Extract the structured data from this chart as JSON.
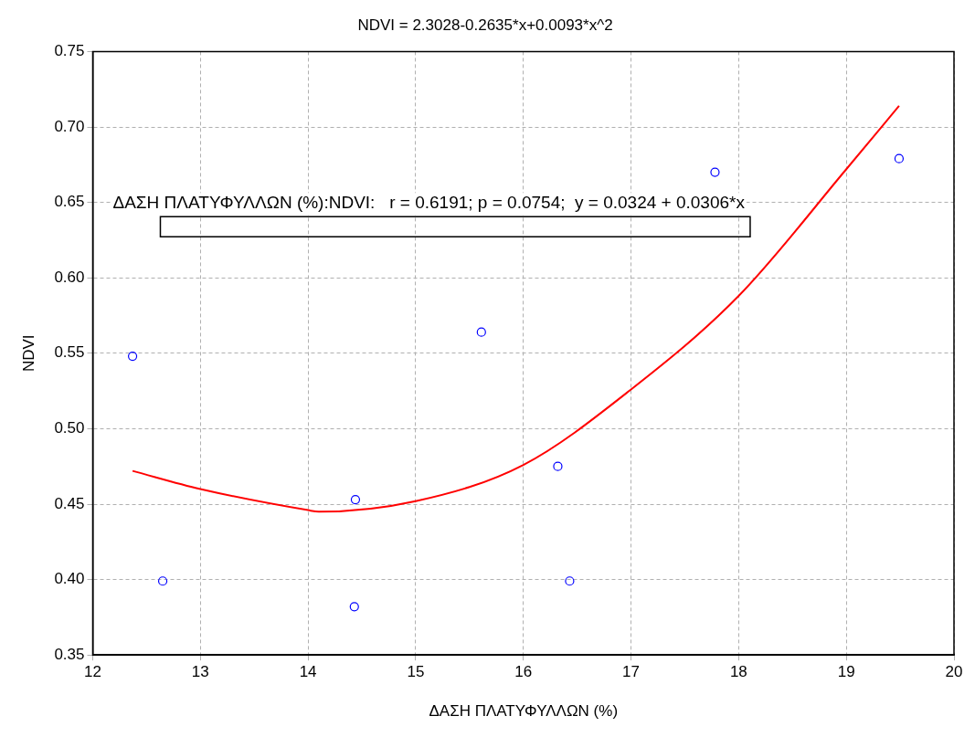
{
  "chart_data": {
    "type": "scatter",
    "title": "NDVI = 2.3028-0.2635*x+0.0093*x^2",
    "xlabel": "ΔΑΣΗ ΠΛΑΤΥΦΥΛΛΩΝ (%)",
    "ylabel": "NDVI",
    "annotations": [
      "ΔΑΣΗ ΠΛΑΤΥΦΥΛΛΩΝ (%):NDVI:   r = 0.6191; p = 0.0754;  y = 0.0324 + 0.0306*x"
    ],
    "xlim": [
      12,
      20
    ],
    "xticks": [
      12,
      13,
      14,
      15,
      16,
      17,
      18,
      19,
      20
    ],
    "ylim": [
      0.35,
      0.75
    ],
    "yticks": [
      0.35,
      {
        "value": 0.4,
        "label": "0.40"
      },
      0.45,
      {
        "value": 0.5,
        "label": "0.50"
      },
      0.55,
      {
        "value": 0.6,
        "label": "0.60"
      },
      0.65,
      {
        "value": 0.7,
        "label": "0.70"
      },
      0.75
    ],
    "grid": true,
    "legend": false,
    "marker": "circle",
    "series": [
      {
        "color": "#0000ff",
        "x": [
          12.37,
          12.65,
          14.43,
          14.44,
          15.61,
          16.32,
          16.43,
          17.78,
          19.49
        ],
        "values": [
          0.548,
          0.399,
          0.382,
          0.453,
          0.564,
          0.475,
          0.399,
          0.67,
          0.679
        ]
      },
      {
        "type": "line",
        "color": "#ff0000",
        "line_style": "solid",
        "marker": "none",
        "x": [
          12.37,
          13,
          14,
          14.1,
          15,
          16,
          17,
          18,
          19,
          19.49
        ],
        "values": [
          0.472,
          0.46,
          0.446,
          0.445,
          0.452,
          0.476,
          0.526,
          0.588,
          0.672,
          0.714
        ]
      }
    ]
  }
}
